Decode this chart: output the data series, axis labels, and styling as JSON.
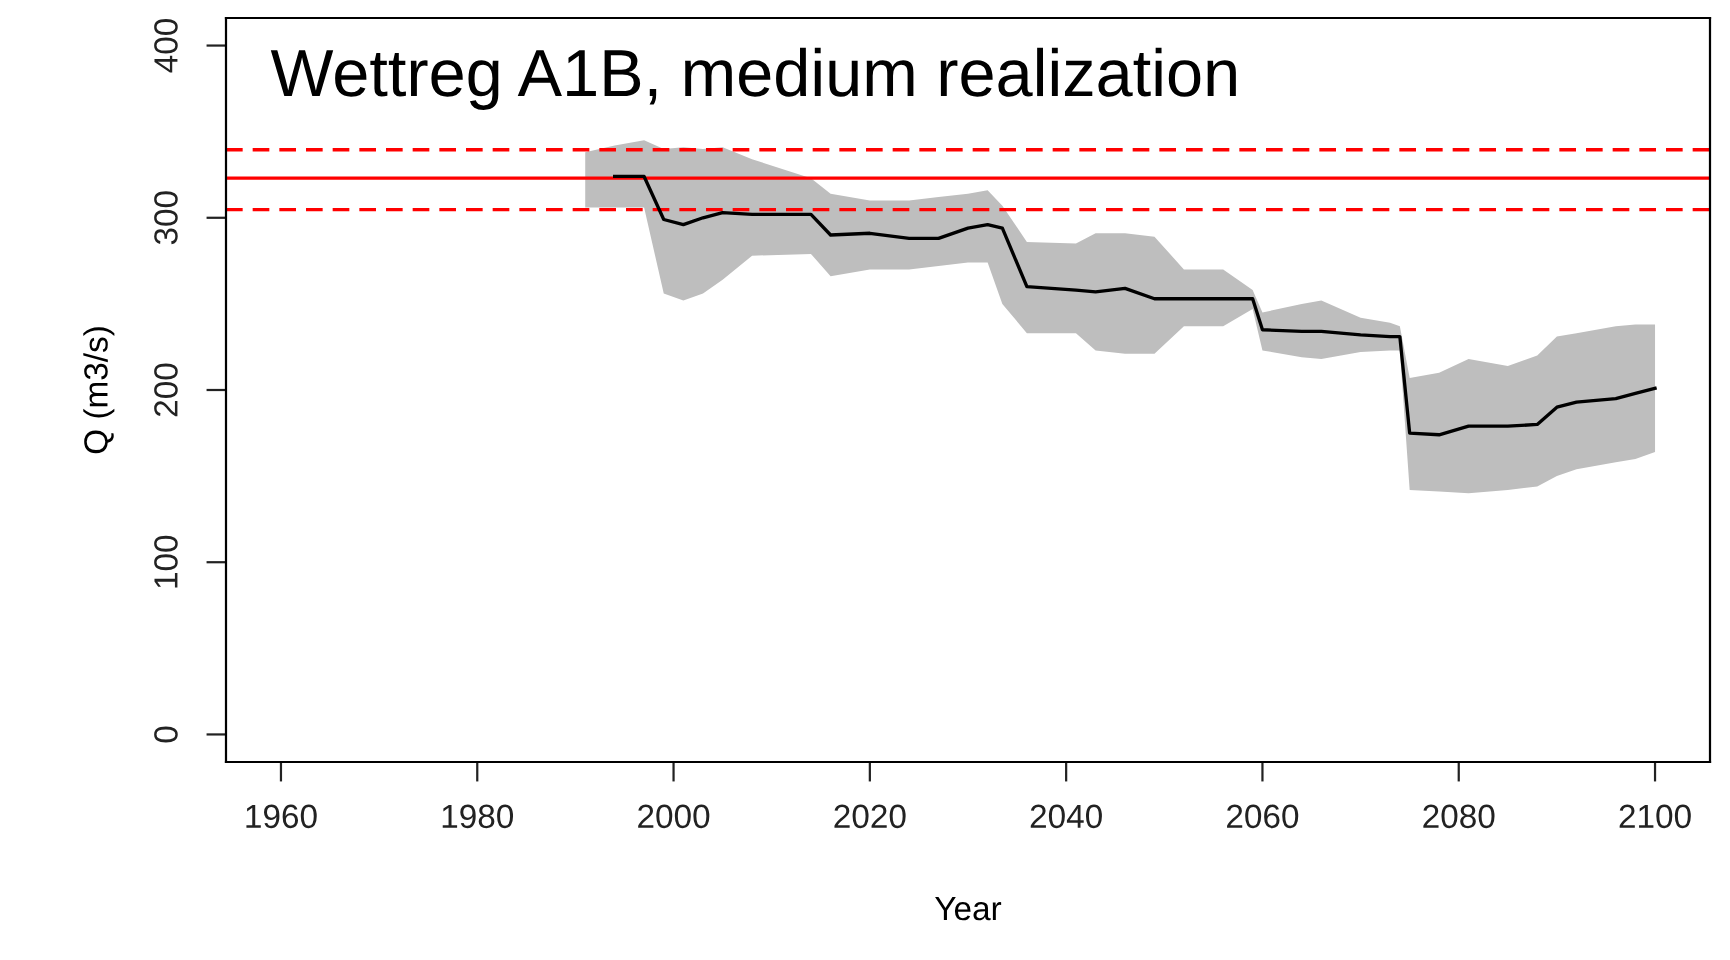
{
  "chart_data": {
    "type": "line",
    "title": "Wettreg A1B, medium realization",
    "xlabel": "Year",
    "ylabel": "Q (m3/s)",
    "xlim": [
      1954.4,
      2105.6
    ],
    "ylim": [
      -16,
      416
    ],
    "xticks": [
      1960,
      1980,
      2000,
      2020,
      2040,
      2060,
      2080,
      2100
    ],
    "yticks": [
      0,
      100,
      200,
      300,
      400
    ],
    "grid": false,
    "legend": false,
    "marker": "none",
    "line_style": "solid",
    "x": [
      1991,
      1994,
      1997,
      1999,
      2001,
      2003,
      2005,
      2008,
      2014,
      2016,
      2020,
      2024,
      2027,
      2030,
      2032,
      2033.5,
      2036,
      2041,
      2043,
      2046,
      2049,
      2052,
      2056,
      2059,
      2060,
      2064,
      2066,
      2070,
      2073,
      2074,
      2075,
      2078,
      2081,
      2085,
      2088,
      2090,
      2092,
      2094,
      2096,
      2098,
      2100
    ],
    "series": [
      {
        "color": "#000000",
        "values": [
          null,
          324,
          324,
          299,
          296,
          300,
          303,
          302,
          302,
          290,
          291,
          288,
          288,
          294,
          296,
          294,
          260,
          258,
          257,
          259,
          253,
          253,
          253,
          253,
          235,
          234,
          234,
          232,
          231,
          231,
          175,
          174,
          179,
          179,
          180,
          190,
          193,
          194,
          195,
          198,
          201
        ],
        "upper": [
          338,
          342,
          345,
          340,
          341,
          340,
          341,
          334,
          323,
          314,
          310,
          310,
          312,
          314,
          316,
          307,
          286,
          285,
          291,
          291,
          289,
          270,
          270,
          258,
          245,
          250,
          252,
          242,
          239,
          237,
          207,
          210,
          218,
          214,
          220,
          231,
          233,
          235,
          237,
          238,
          238
        ],
        "lower": [
          306,
          306,
          306,
          256,
          252,
          256,
          264,
          278,
          279,
          266,
          270,
          270,
          272,
          274,
          274,
          250,
          233,
          233,
          223,
          221,
          221,
          237,
          237,
          247,
          223,
          219,
          218,
          222,
          223,
          223,
          142,
          141,
          140,
          142,
          144,
          150,
          154,
          156,
          158,
          160,
          164
        ]
      }
    ],
    "ref_lines": [
      {
        "axis": "y",
        "value": 339.5,
        "label": null,
        "color": "#ff0000",
        "line_style": "dashed"
      },
      {
        "axis": "y",
        "value": 323,
        "label": null,
        "color": "#ff0000",
        "line_style": "solid"
      },
      {
        "axis": "y",
        "value": 304.7,
        "label": null,
        "color": "#ff0000",
        "line_style": "dashed"
      }
    ]
  }
}
